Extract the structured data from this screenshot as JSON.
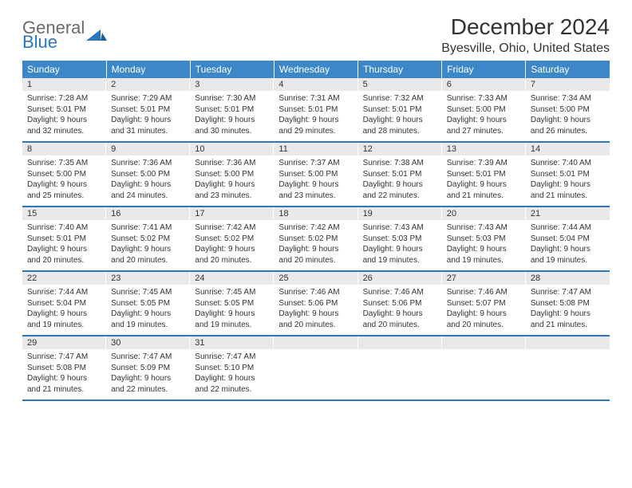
{
  "logo": {
    "line1": "General",
    "line2": "Blue"
  },
  "title": "December 2024",
  "location": "Byesville, Ohio, United States",
  "colors": {
    "header_bg": "#3b87c8",
    "header_text": "#ffffff",
    "rule": "#2a77bb",
    "daynum_bg": "#e9e9e9",
    "text": "#333333",
    "logo_gray": "#6a6a6a",
    "logo_blue": "#2a77bb",
    "background": "#ffffff"
  },
  "day_headers": [
    "Sunday",
    "Monday",
    "Tuesday",
    "Wednesday",
    "Thursday",
    "Friday",
    "Saturday"
  ],
  "weeks": [
    [
      {
        "n": "1",
        "sr": "Sunrise: 7:28 AM",
        "ss": "Sunset: 5:01 PM",
        "d1": "Daylight: 9 hours",
        "d2": "and 32 minutes."
      },
      {
        "n": "2",
        "sr": "Sunrise: 7:29 AM",
        "ss": "Sunset: 5:01 PM",
        "d1": "Daylight: 9 hours",
        "d2": "and 31 minutes."
      },
      {
        "n": "3",
        "sr": "Sunrise: 7:30 AM",
        "ss": "Sunset: 5:01 PM",
        "d1": "Daylight: 9 hours",
        "d2": "and 30 minutes."
      },
      {
        "n": "4",
        "sr": "Sunrise: 7:31 AM",
        "ss": "Sunset: 5:01 PM",
        "d1": "Daylight: 9 hours",
        "d2": "and 29 minutes."
      },
      {
        "n": "5",
        "sr": "Sunrise: 7:32 AM",
        "ss": "Sunset: 5:01 PM",
        "d1": "Daylight: 9 hours",
        "d2": "and 28 minutes."
      },
      {
        "n": "6",
        "sr": "Sunrise: 7:33 AM",
        "ss": "Sunset: 5:00 PM",
        "d1": "Daylight: 9 hours",
        "d2": "and 27 minutes."
      },
      {
        "n": "7",
        "sr": "Sunrise: 7:34 AM",
        "ss": "Sunset: 5:00 PM",
        "d1": "Daylight: 9 hours",
        "d2": "and 26 minutes."
      }
    ],
    [
      {
        "n": "8",
        "sr": "Sunrise: 7:35 AM",
        "ss": "Sunset: 5:00 PM",
        "d1": "Daylight: 9 hours",
        "d2": "and 25 minutes."
      },
      {
        "n": "9",
        "sr": "Sunrise: 7:36 AM",
        "ss": "Sunset: 5:00 PM",
        "d1": "Daylight: 9 hours",
        "d2": "and 24 minutes."
      },
      {
        "n": "10",
        "sr": "Sunrise: 7:36 AM",
        "ss": "Sunset: 5:00 PM",
        "d1": "Daylight: 9 hours",
        "d2": "and 23 minutes."
      },
      {
        "n": "11",
        "sr": "Sunrise: 7:37 AM",
        "ss": "Sunset: 5:00 PM",
        "d1": "Daylight: 9 hours",
        "d2": "and 23 minutes."
      },
      {
        "n": "12",
        "sr": "Sunrise: 7:38 AM",
        "ss": "Sunset: 5:01 PM",
        "d1": "Daylight: 9 hours",
        "d2": "and 22 minutes."
      },
      {
        "n": "13",
        "sr": "Sunrise: 7:39 AM",
        "ss": "Sunset: 5:01 PM",
        "d1": "Daylight: 9 hours",
        "d2": "and 21 minutes."
      },
      {
        "n": "14",
        "sr": "Sunrise: 7:40 AM",
        "ss": "Sunset: 5:01 PM",
        "d1": "Daylight: 9 hours",
        "d2": "and 21 minutes."
      }
    ],
    [
      {
        "n": "15",
        "sr": "Sunrise: 7:40 AM",
        "ss": "Sunset: 5:01 PM",
        "d1": "Daylight: 9 hours",
        "d2": "and 20 minutes."
      },
      {
        "n": "16",
        "sr": "Sunrise: 7:41 AM",
        "ss": "Sunset: 5:02 PM",
        "d1": "Daylight: 9 hours",
        "d2": "and 20 minutes."
      },
      {
        "n": "17",
        "sr": "Sunrise: 7:42 AM",
        "ss": "Sunset: 5:02 PM",
        "d1": "Daylight: 9 hours",
        "d2": "and 20 minutes."
      },
      {
        "n": "18",
        "sr": "Sunrise: 7:42 AM",
        "ss": "Sunset: 5:02 PM",
        "d1": "Daylight: 9 hours",
        "d2": "and 20 minutes."
      },
      {
        "n": "19",
        "sr": "Sunrise: 7:43 AM",
        "ss": "Sunset: 5:03 PM",
        "d1": "Daylight: 9 hours",
        "d2": "and 19 minutes."
      },
      {
        "n": "20",
        "sr": "Sunrise: 7:43 AM",
        "ss": "Sunset: 5:03 PM",
        "d1": "Daylight: 9 hours",
        "d2": "and 19 minutes."
      },
      {
        "n": "21",
        "sr": "Sunrise: 7:44 AM",
        "ss": "Sunset: 5:04 PM",
        "d1": "Daylight: 9 hours",
        "d2": "and 19 minutes."
      }
    ],
    [
      {
        "n": "22",
        "sr": "Sunrise: 7:44 AM",
        "ss": "Sunset: 5:04 PM",
        "d1": "Daylight: 9 hours",
        "d2": "and 19 minutes."
      },
      {
        "n": "23",
        "sr": "Sunrise: 7:45 AM",
        "ss": "Sunset: 5:05 PM",
        "d1": "Daylight: 9 hours",
        "d2": "and 19 minutes."
      },
      {
        "n": "24",
        "sr": "Sunrise: 7:45 AM",
        "ss": "Sunset: 5:05 PM",
        "d1": "Daylight: 9 hours",
        "d2": "and 19 minutes."
      },
      {
        "n": "25",
        "sr": "Sunrise: 7:46 AM",
        "ss": "Sunset: 5:06 PM",
        "d1": "Daylight: 9 hours",
        "d2": "and 20 minutes."
      },
      {
        "n": "26",
        "sr": "Sunrise: 7:46 AM",
        "ss": "Sunset: 5:06 PM",
        "d1": "Daylight: 9 hours",
        "d2": "and 20 minutes."
      },
      {
        "n": "27",
        "sr": "Sunrise: 7:46 AM",
        "ss": "Sunset: 5:07 PM",
        "d1": "Daylight: 9 hours",
        "d2": "and 20 minutes."
      },
      {
        "n": "28",
        "sr": "Sunrise: 7:47 AM",
        "ss": "Sunset: 5:08 PM",
        "d1": "Daylight: 9 hours",
        "d2": "and 21 minutes."
      }
    ],
    [
      {
        "n": "29",
        "sr": "Sunrise: 7:47 AM",
        "ss": "Sunset: 5:08 PM",
        "d1": "Daylight: 9 hours",
        "d2": "and 21 minutes."
      },
      {
        "n": "30",
        "sr": "Sunrise: 7:47 AM",
        "ss": "Sunset: 5:09 PM",
        "d1": "Daylight: 9 hours",
        "d2": "and 22 minutes."
      },
      {
        "n": "31",
        "sr": "Sunrise: 7:47 AM",
        "ss": "Sunset: 5:10 PM",
        "d1": "Daylight: 9 hours",
        "d2": "and 22 minutes."
      },
      {
        "empty": true
      },
      {
        "empty": true
      },
      {
        "empty": true
      },
      {
        "empty": true
      }
    ]
  ]
}
